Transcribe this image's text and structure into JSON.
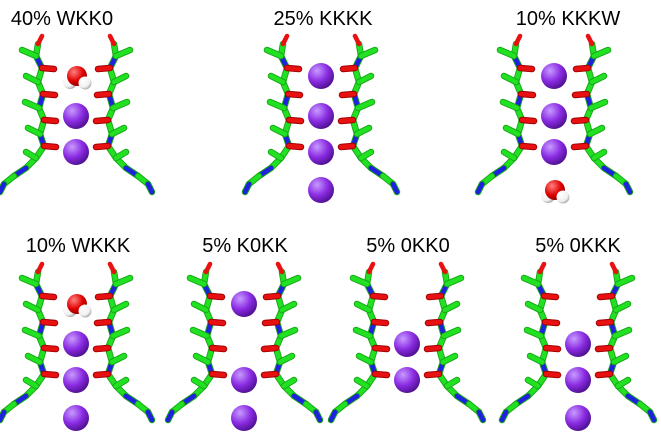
{
  "figure": {
    "colors": {
      "carbon": "#22e022",
      "carbon_dark": "#16a816",
      "oxygen": "#e81010",
      "nitrogen": "#2020e0",
      "potassium": "#8a2be2",
      "potassium_light": "#c79bff",
      "water_oxygen": "#e00000",
      "water_hydrogen": "#ffffff"
    },
    "panels": [
      {
        "label": "40% WKK0",
        "sites": [
          "W",
          "K",
          "K",
          "0"
        ]
      },
      {
        "label": "25% KKKK",
        "sites": [
          "K",
          "K",
          "K",
          "K"
        ]
      },
      {
        "label": "10% KKKW",
        "sites": [
          "K",
          "K",
          "K",
          "W"
        ]
      },
      {
        "label": "10% WKKK",
        "sites": [
          "W",
          "K",
          "K",
          "K"
        ]
      },
      {
        "label": "5% K0KK",
        "sites": [
          "K",
          "0",
          "K",
          "K"
        ]
      },
      {
        "label": "5% 0KK0",
        "sites": [
          "0",
          "K",
          "K",
          "0"
        ]
      },
      {
        "label": "5% 0KKK",
        "sites": [
          "0",
          "K",
          "K",
          "K"
        ]
      }
    ]
  }
}
